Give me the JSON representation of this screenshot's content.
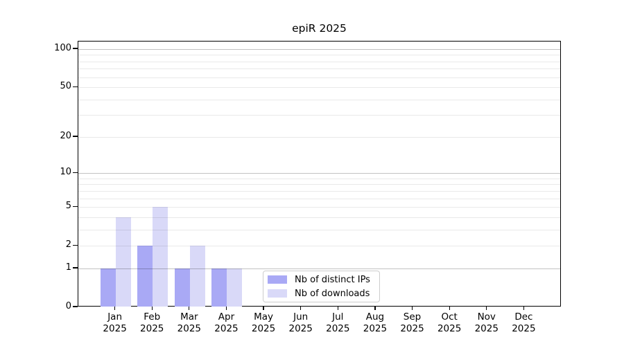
{
  "title": "epiR 2025",
  "chart_data": {
    "type": "bar",
    "title": "epiR 2025",
    "categories": [
      "Jan",
      "Feb",
      "Mar",
      "Apr",
      "May",
      "Jun",
      "Jul",
      "Aug",
      "Sep",
      "Oct",
      "Nov",
      "Dec"
    ],
    "year_label": "2025",
    "series": [
      {
        "name": "Nb of distinct IPs",
        "color": "#a9a9f5",
        "values": [
          1,
          2,
          1,
          1,
          0,
          0,
          0,
          0,
          0,
          0,
          0,
          0
        ]
      },
      {
        "name": "Nb of downloads",
        "color": "#d9d9f8",
        "values": [
          4,
          5,
          2,
          1,
          0,
          0,
          0,
          0,
          0,
          0,
          0,
          0
        ]
      }
    ],
    "yscale": "log1p",
    "ylim": [
      0,
      114
    ],
    "yticks": [
      0,
      1,
      2,
      5,
      10,
      20,
      50,
      100
    ],
    "grid_major_values": [
      1,
      10,
      100
    ],
    "grid_minor_values": [
      2,
      3,
      4,
      5,
      6,
      7,
      8,
      9,
      20,
      30,
      40,
      50,
      60,
      70,
      80,
      90
    ],
    "grid": "on",
    "grid_on_top": true,
    "legend_position": "lower center",
    "xlabel": "",
    "ylabel": "",
    "colors": {
      "series1": "#a9a9f5",
      "series2": "#d9d9f8",
      "axis": "#000000",
      "grid_major": "#bfbfbf",
      "grid_minor": "#ebebeb",
      "background": "#ffffff",
      "legend_border": "#cccccc"
    }
  }
}
